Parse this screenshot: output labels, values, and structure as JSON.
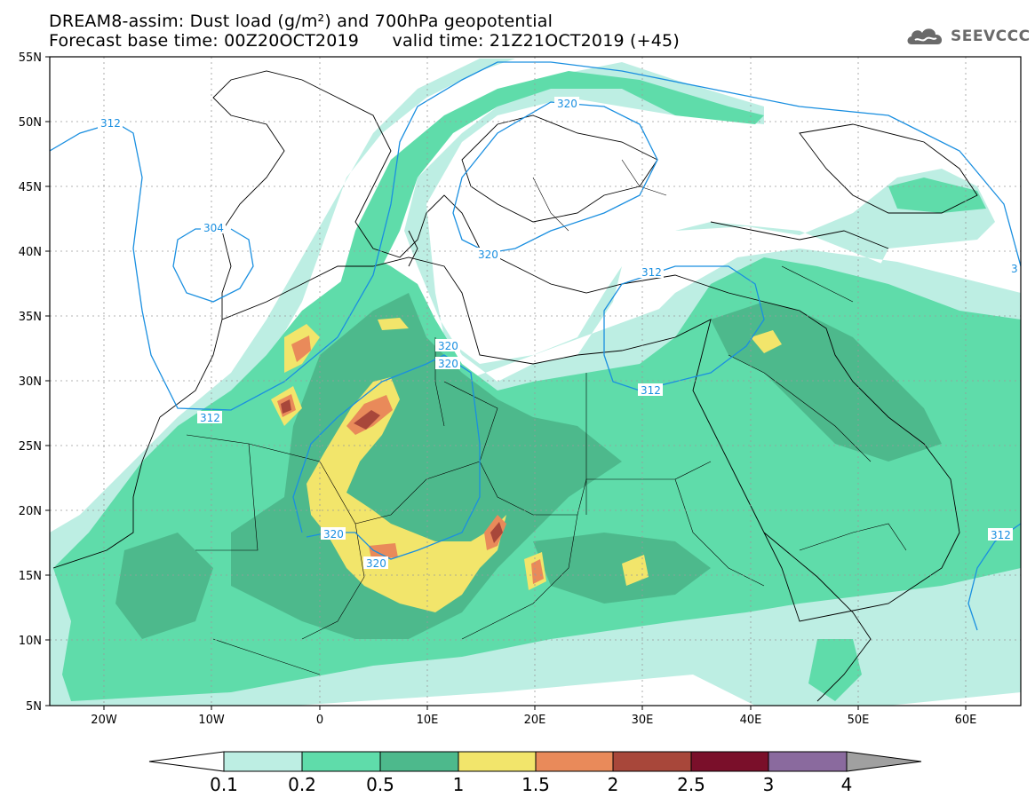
{
  "header": {
    "title_line1": "DREAM8-assim: Dust load (g/m²) and 700hPa geopotential",
    "title_line2": "Forecast base time: 00Z20OCT2019      valid time: 21Z21OCT2019 (+45)",
    "logo_text": "SEEVCCC"
  },
  "map": {
    "lat_labels": [
      "55N",
      "50N",
      "45N",
      "40N",
      "35N",
      "30N",
      "25N",
      "20N",
      "15N",
      "10N",
      "5N"
    ],
    "lon_labels": [
      "20W",
      "10W",
      "0",
      "10E",
      "20E",
      "30E",
      "40E",
      "50E",
      "60E"
    ],
    "contour_labels": [
      "312",
      "320",
      "304",
      "320",
      "320",
      "312",
      "320",
      "312",
      "312",
      "320",
      "320",
      "312",
      "3"
    ],
    "colors": {
      "ocean": "#ffffff",
      "coast": "#000000",
      "contour": "#1a8fe0",
      "grid": "#9a9a9a"
    }
  },
  "colorbar": {
    "tick_labels": [
      "0.1",
      "0.2",
      "0.5",
      "1",
      "1.5",
      "2",
      "2.5",
      "3",
      "4"
    ],
    "colors": [
      "#ffffff",
      "#bdeee3",
      "#5fdcaa",
      "#4db98c",
      "#f2e56b",
      "#e98a5a",
      "#a8473a",
      "#7a0f2a",
      "#8a6a9e",
      "#a0a0a0"
    ]
  }
}
